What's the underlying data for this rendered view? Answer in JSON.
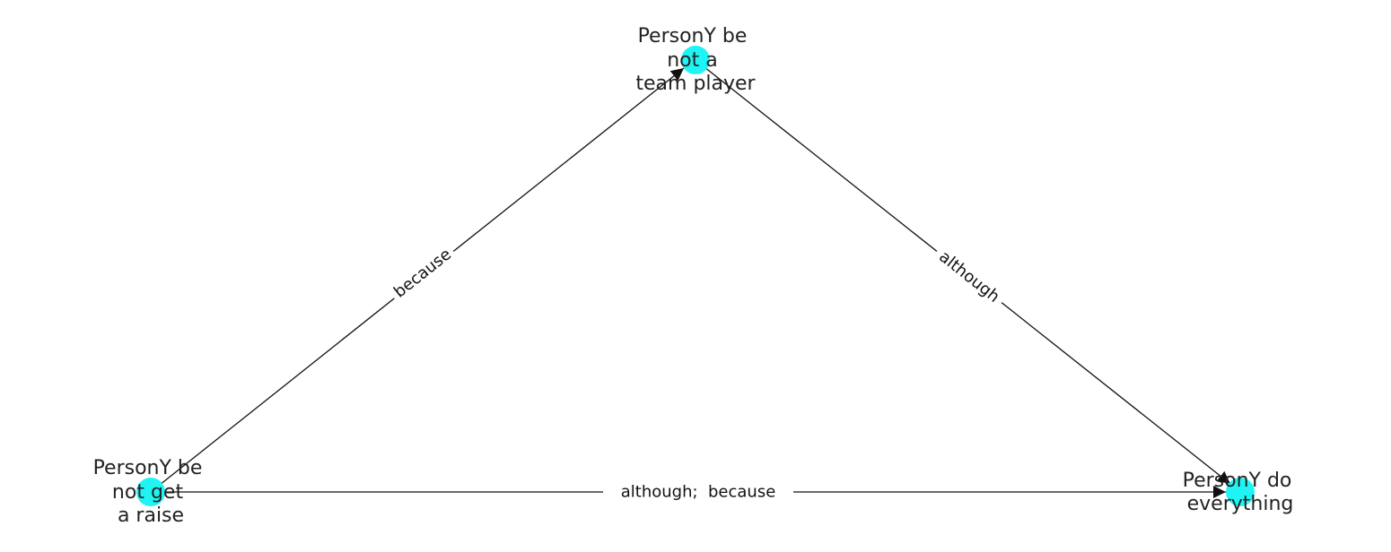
{
  "colors": {
    "node_fill": "#1ff4f4",
    "edge_stroke": "#111111",
    "text": "#222222",
    "background": "#ffffff"
  },
  "nodes": [
    {
      "id": "not_team_player",
      "lines": [
        "PersonY be",
        "not a",
        "team player"
      ]
    },
    {
      "id": "not_get_raise",
      "lines": [
        "PersonY be",
        "not get",
        "a raise"
      ]
    },
    {
      "id": "do_everything",
      "lines": [
        "PersonY do",
        "everything"
      ]
    }
  ],
  "edges": [
    {
      "id": "raise-to-team",
      "from": "not_get_raise",
      "to": "not_team_player",
      "label": "because"
    },
    {
      "id": "team-to-everything",
      "from": "not_team_player",
      "to": "do_everything",
      "label": "although"
    },
    {
      "id": "raise-to-everything",
      "from": "not_get_raise",
      "to": "do_everything",
      "label": "although;  because"
    }
  ]
}
